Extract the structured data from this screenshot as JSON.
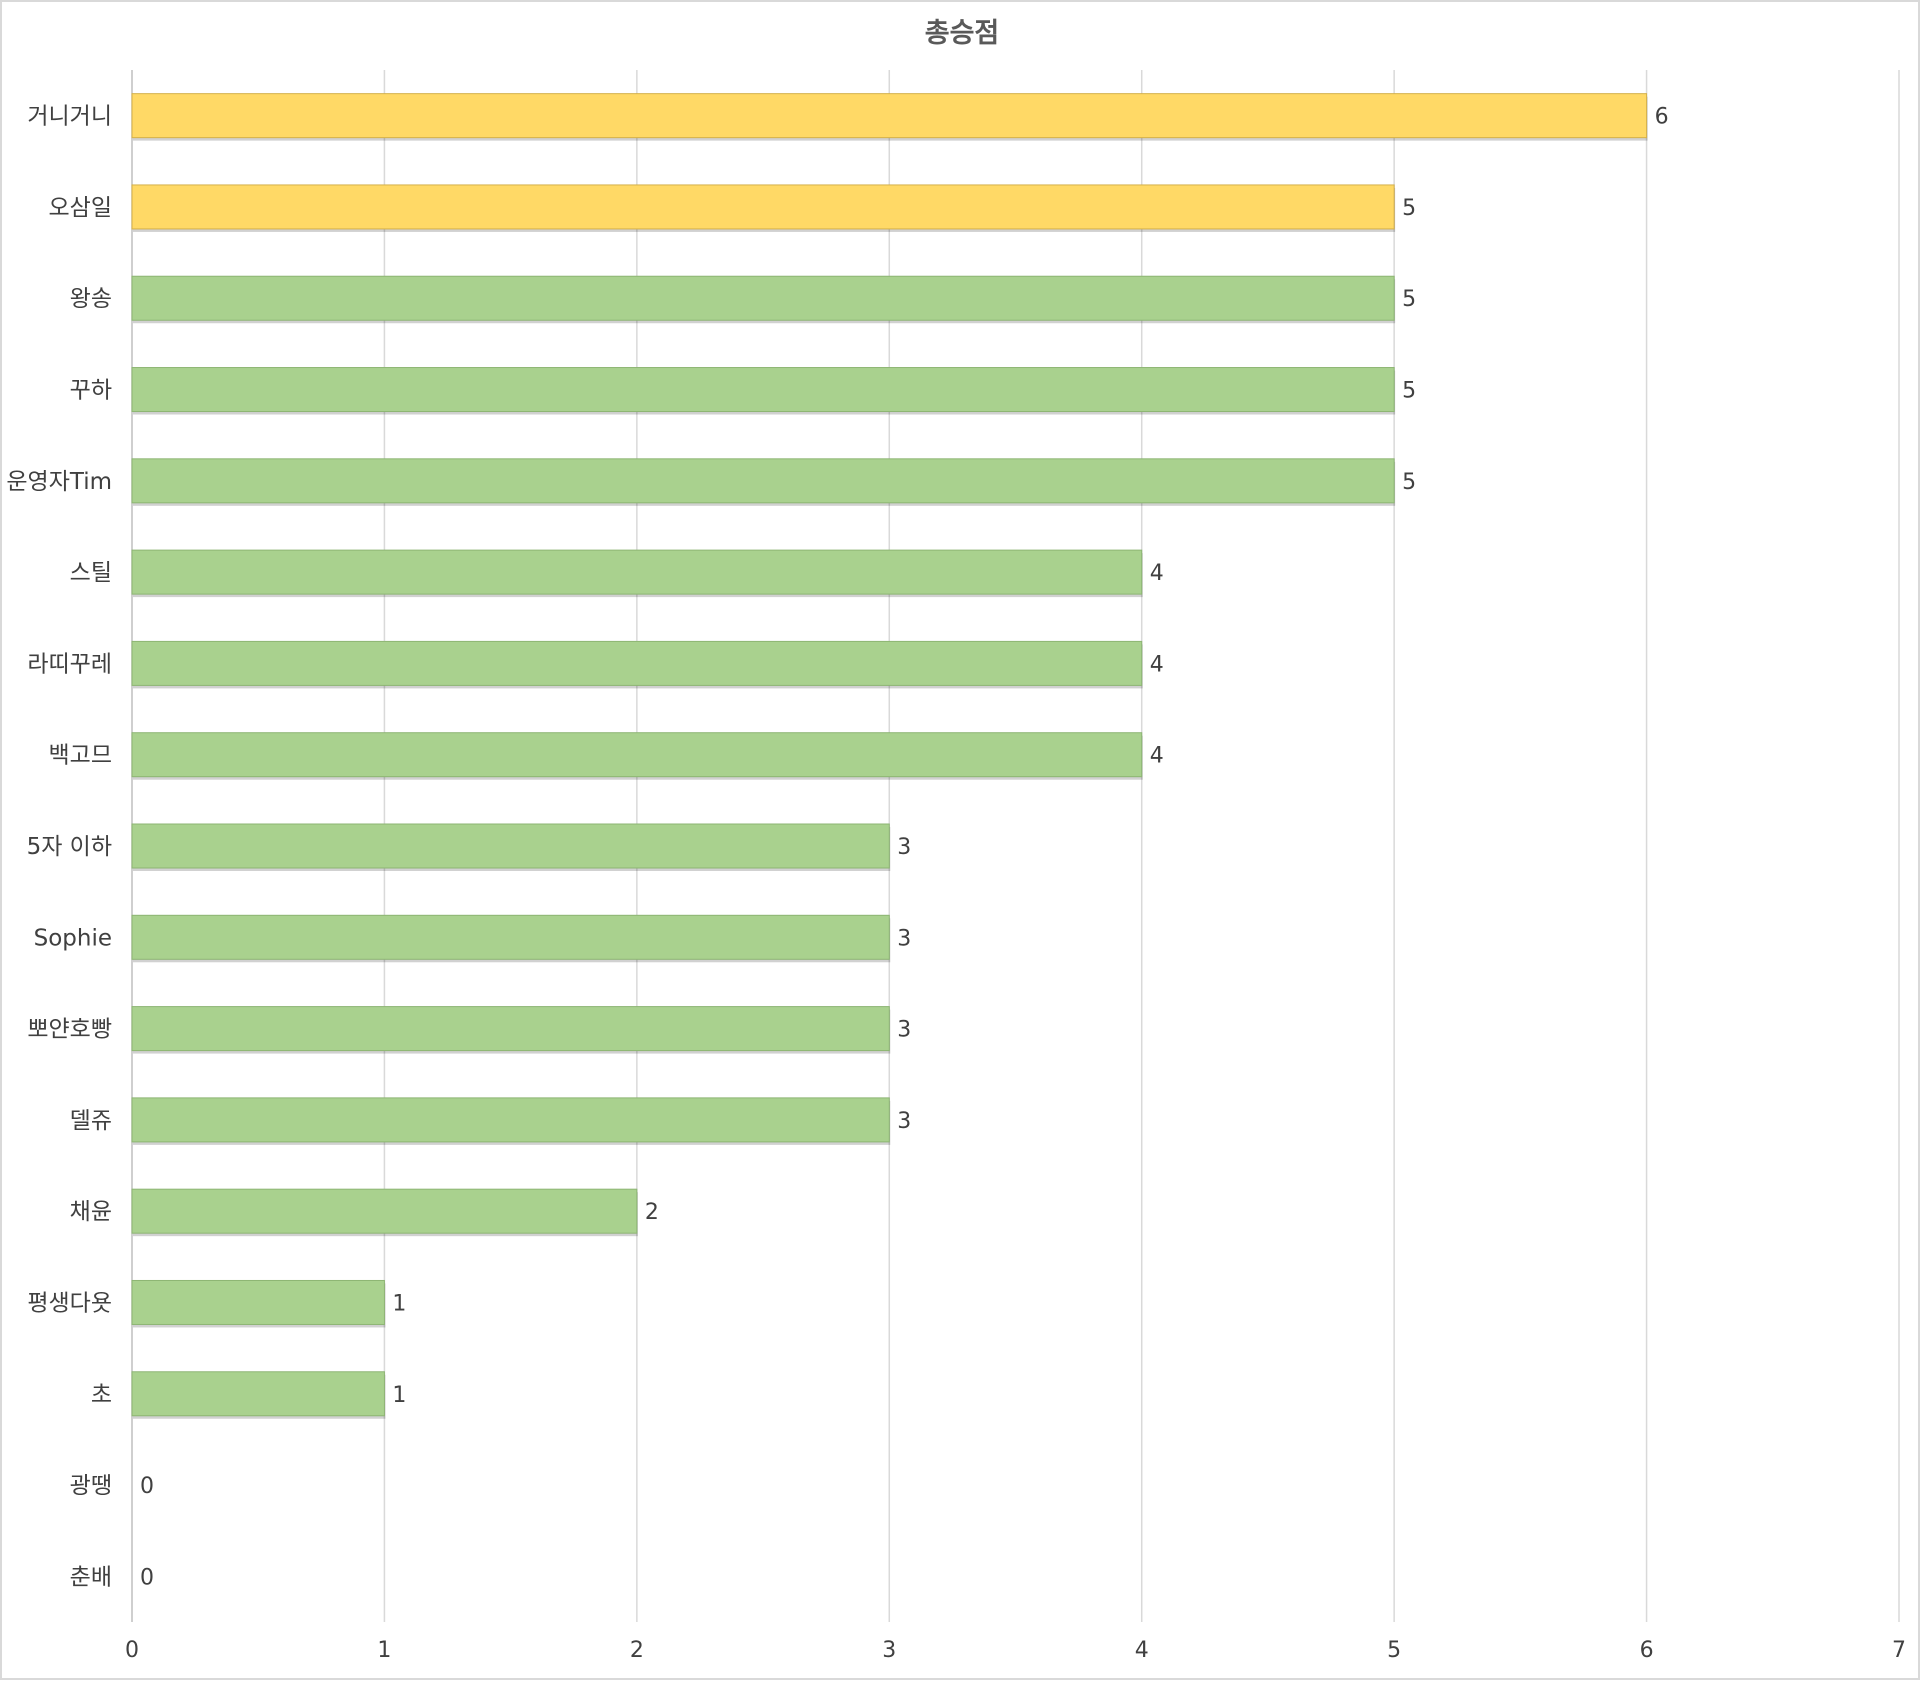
{
  "chart_data": {
    "type": "bar",
    "orientation": "horizontal",
    "title": "총승점",
    "xlabel": "",
    "ylabel": "",
    "categories": [
      "거니거니",
      "오삼일",
      "왕송",
      "꾸하",
      "운영자Tim",
      "스틸",
      "라띠꾸레",
      "백고므",
      "5자 이하",
      "Sophie",
      "뽀얀호빵",
      "델쥬",
      "채윤",
      "평생다욧",
      "초",
      "광땡",
      "춘배"
    ],
    "values": [
      6,
      5,
      5,
      5,
      5,
      4,
      4,
      4,
      3,
      3,
      3,
      3,
      2,
      1,
      1,
      0,
      0
    ],
    "value_labels": [
      "6",
      "5",
      "5",
      "5",
      "5",
      "4",
      "4",
      "4",
      "3",
      "3",
      "3",
      "3",
      "2",
      "1",
      "1",
      "0",
      "0"
    ],
    "xlim": [
      0,
      7
    ],
    "x_ticks": [
      0,
      1,
      2,
      3,
      4,
      5,
      6,
      7
    ],
    "x_tick_labels": [
      "0",
      "1",
      "2",
      "3",
      "4",
      "5",
      "6",
      "7"
    ],
    "grid": "vertical",
    "legend": "none",
    "highlight_count": 2,
    "colors": {
      "highlight": "#ffd966",
      "highlight_stroke": "#d4b04a",
      "default": "#a9d18e",
      "default_stroke": "#8db573",
      "gridline": "#d9d9d9",
      "axis": "#bfbfbf",
      "title_text": "#595959",
      "label_text": "#404040"
    }
  }
}
